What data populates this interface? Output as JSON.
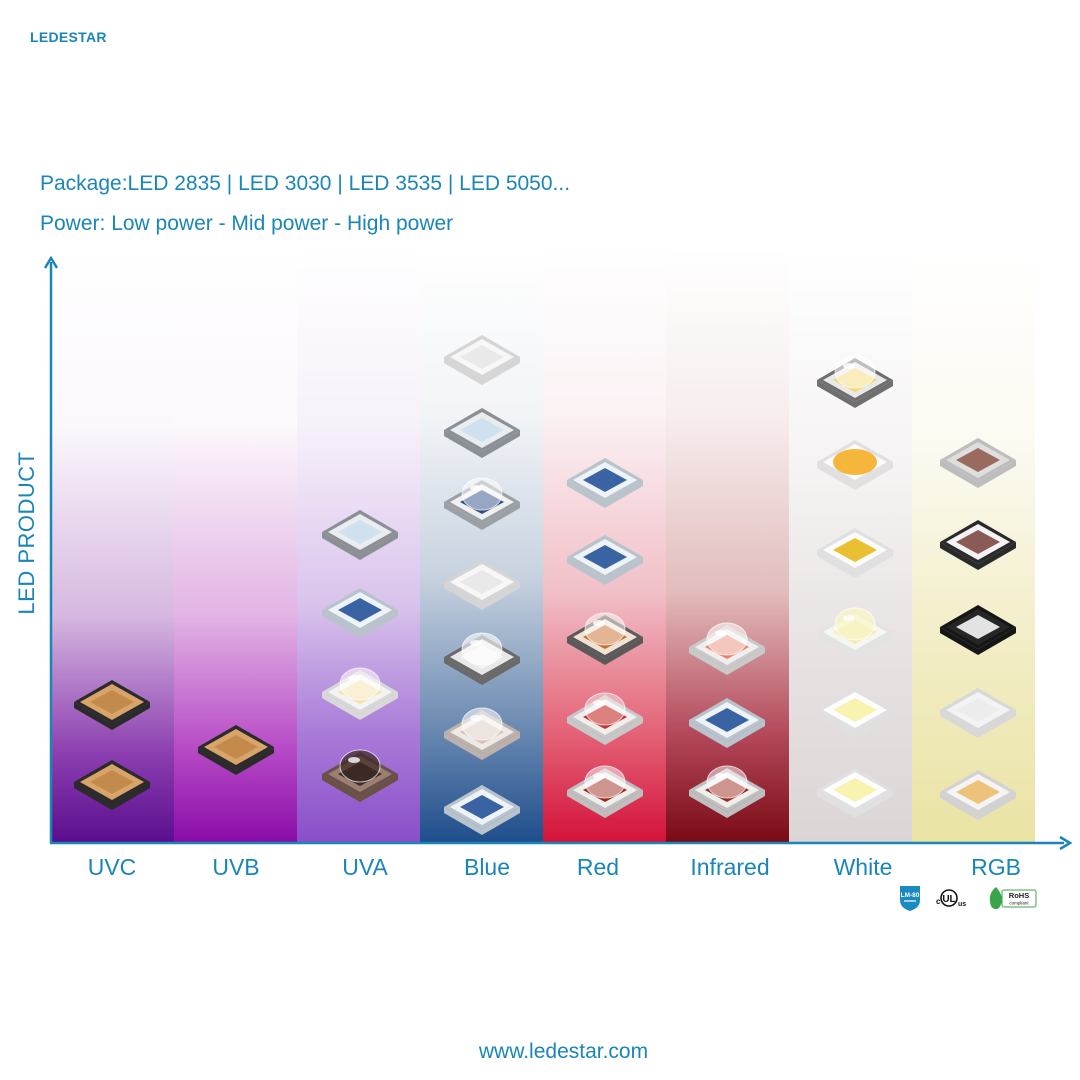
{
  "brand": {
    "logo": "LEDESTAR"
  },
  "header": {
    "package_line": "Package:LED 2835 | LED 3030 | LED 3535 | LED 5050...",
    "power_line": "Power: Low power - Mid power - High power"
  },
  "axis": {
    "y_label": "LED PRODUCT"
  },
  "categories": [
    {
      "label": "UVC",
      "count": 2
    },
    {
      "label": "UVB",
      "count": 1
    },
    {
      "label": "UVA",
      "count": 4
    },
    {
      "label": "Blue",
      "count": 7
    },
    {
      "label": "Red",
      "count": 5
    },
    {
      "label": "Infrared",
      "count": 3
    },
    {
      "label": "White",
      "count": 6
    },
    {
      "label": "RGB",
      "count": 5
    }
  ],
  "certifications": [
    "LM-80",
    "UL",
    "RoHS compliant"
  ],
  "footer": {
    "url": "www.ledestar.com"
  },
  "colors": {
    "brand_blue": "#1a86b8"
  }
}
